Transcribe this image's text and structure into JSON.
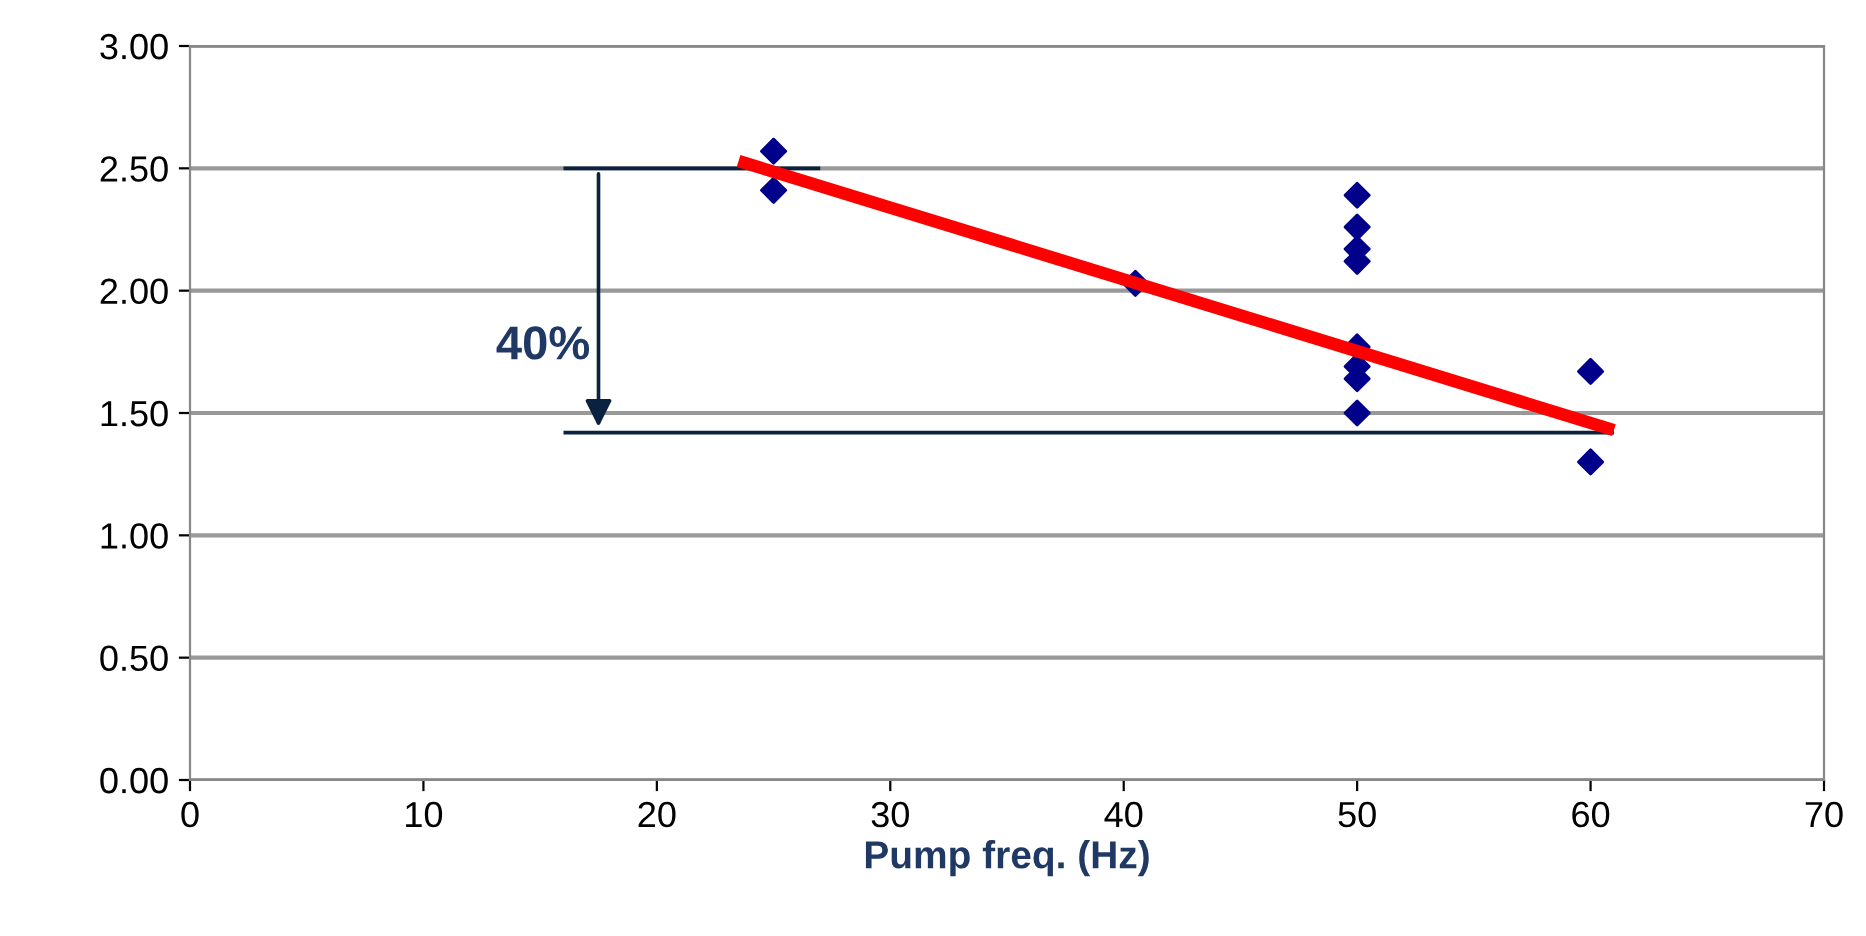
{
  "chart_data": {
    "type": "scatter",
    "xlabel": "Pump freq. (Hz)",
    "xlim": [
      0,
      70
    ],
    "xticks": [
      0,
      10,
      20,
      30,
      40,
      50,
      60,
      70
    ],
    "ylim": [
      0,
      3.0
    ],
    "yticks": [
      {
        "value": 0,
        "label": "0.00"
      },
      {
        "value": 0.5,
        "label": "0.50"
      },
      {
        "value": 1.0,
        "label": "1.00"
      },
      {
        "value": 1.5,
        "label": "1.50"
      },
      {
        "value": 2.0,
        "label": "2.00"
      },
      {
        "value": 2.5,
        "label": "2.50"
      },
      {
        "value": 3.0,
        "label": "3.00"
      }
    ],
    "grid": "y",
    "legend": false,
    "series": [
      {
        "marker": "diamond",
        "color": "#00008b",
        "x": [
          25,
          25,
          40.5,
          50,
          50,
          50,
          50,
          50,
          50,
          50,
          50,
          60,
          60
        ],
        "values": [
          2.57,
          2.41,
          2.03,
          2.39,
          2.26,
          2.17,
          2.12,
          1.77,
          1.69,
          1.64,
          1.5,
          1.67,
          1.3
        ]
      },
      {
        "type": "line",
        "color": "#ff0000",
        "x": [
          23.5,
          61
        ],
        "values": [
          2.53,
          1.43
        ]
      },
      {
        "type": "line",
        "color": "#0a2240",
        "x": [
          16,
          27
        ],
        "values": [
          2.5,
          2.5
        ]
      },
      {
        "type": "line",
        "color": "#0a2240",
        "x": [
          16,
          61
        ],
        "values": [
          1.42,
          1.42
        ]
      }
    ],
    "annotations": [
      "40%"
    ]
  }
}
